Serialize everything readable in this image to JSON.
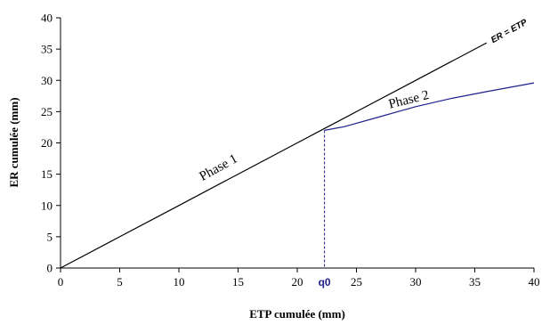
{
  "chart_data": {
    "type": "line",
    "xlabel": "ETP cumulée (mm)",
    "ylabel": "ER cumulée (mm)",
    "xlim": [
      0,
      40
    ],
    "ylim": [
      0,
      40
    ],
    "x_ticks": [
      0,
      5,
      10,
      15,
      20,
      25,
      30,
      35,
      40
    ],
    "y_ticks": [
      0,
      5,
      10,
      15,
      20,
      25,
      30,
      35,
      40
    ],
    "grid": false,
    "series": [
      {
        "name": "ER = ETP",
        "color": "#000000",
        "x": [
          0,
          5,
          10,
          15,
          20,
          22.3,
          25,
          30,
          33,
          36
        ],
        "y": [
          0,
          5,
          10,
          15,
          20,
          22.3,
          25,
          30,
          33,
          36
        ]
      },
      {
        "name": "",
        "color": "#1f1f8c",
        "x": [
          22.3,
          24,
          27,
          30,
          33,
          36,
          40
        ],
        "y": [
          22,
          22.6,
          24.2,
          25.8,
          27.1,
          28.2,
          29.6
        ]
      }
    ],
    "q0": {
      "label": "q0",
      "x": 22.3,
      "color": "#1f1f8c"
    },
    "annotations": [
      {
        "text": "Phase 1",
        "x": 13.5,
        "y": 15.5,
        "angle_deg": -29
      },
      {
        "text": "Phase 2",
        "x": 29.5,
        "y": 26.3,
        "angle_deg": -14
      },
      {
        "text": "ER = ETP",
        "x": 38,
        "y": 37.5,
        "angle_deg": -29
      }
    ]
  }
}
